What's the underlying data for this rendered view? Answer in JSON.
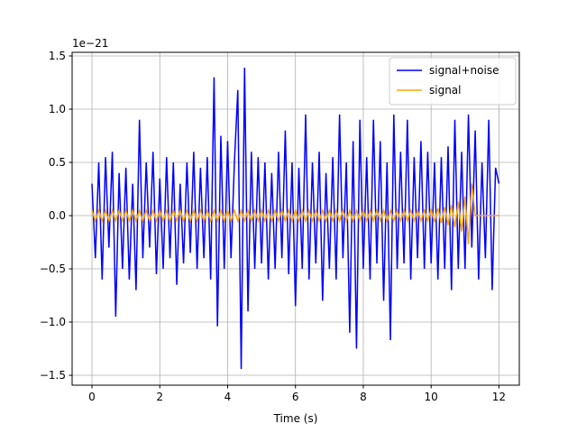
{
  "chart_data": {
    "type": "line",
    "xlabel": "Time (s)",
    "offset_text": "1e−21",
    "xlim": [
      -0.585,
      12.6
    ],
    "ylim": [
      -1.593,
      1.534
    ],
    "xticks": [
      0,
      2,
      4,
      6,
      8,
      10,
      12
    ],
    "yticks": [
      {
        "value": -1.5,
        "label": "−1.5"
      },
      {
        "value": -1.0,
        "label": "−1.0"
      },
      {
        "value": -0.5,
        "label": "−0.5"
      },
      {
        "value": 0,
        "label": "0.0"
      },
      {
        "value": 0.5,
        "label": "0.5"
      },
      {
        "value": 1.0,
        "label": "1.0"
      },
      {
        "value": 1.5,
        "label": "1.5"
      }
    ],
    "grid": true,
    "legend_loc": "upper right",
    "x": [
      0.0,
      0.1,
      0.2,
      0.3,
      0.4,
      0.5,
      0.6,
      0.7,
      0.8,
      0.9,
      1.0,
      1.1,
      1.2,
      1.3,
      1.4,
      1.5,
      1.6,
      1.7,
      1.8,
      1.9,
      2.0,
      2.1,
      2.2,
      2.3,
      2.4,
      2.5,
      2.6,
      2.7,
      2.8,
      2.9,
      3.0,
      3.1,
      3.2,
      3.3,
      3.4,
      3.5,
      3.6,
      3.7,
      3.8,
      3.9,
      4.0,
      4.1,
      4.2,
      4.3,
      4.4,
      4.5,
      4.6,
      4.7,
      4.8,
      4.9,
      5.0,
      5.1,
      5.2,
      5.3,
      5.4,
      5.5,
      5.6,
      5.7,
      5.8,
      5.9,
      6.0,
      6.1,
      6.2,
      6.3,
      6.4,
      6.5,
      6.6,
      6.7,
      6.8,
      6.9,
      7.0,
      7.1,
      7.2,
      7.3,
      7.4,
      7.5,
      7.6,
      7.7,
      7.8,
      7.9,
      8.0,
      8.1,
      8.2,
      8.3,
      8.4,
      8.5,
      8.6,
      8.7,
      8.8,
      8.9,
      9.0,
      9.1,
      9.2,
      9.3,
      9.4,
      9.5,
      9.6,
      9.7,
      9.8,
      9.9,
      10.0,
      10.1,
      10.2,
      10.3,
      10.4,
      10.5,
      10.6,
      10.7,
      10.8,
      10.9,
      11.0,
      11.1,
      11.2,
      11.3,
      11.4,
      11.5,
      11.6,
      11.7,
      11.8,
      11.9,
      12.0
    ],
    "series": [
      {
        "name": "signal+noise",
        "color": "#0000ff",
        "values": [
          0.3,
          -0.4,
          0.5,
          -0.6,
          0.55,
          -0.3,
          0.6,
          -0.95,
          0.4,
          -0.5,
          0.45,
          -0.6,
          0.3,
          -0.7,
          0.9,
          -0.4,
          0.5,
          -0.3,
          0.6,
          -0.55,
          0.35,
          -0.5,
          0.55,
          -0.4,
          0.5,
          -0.65,
          0.3,
          -0.45,
          0.5,
          -0.35,
          0.6,
          -0.5,
          0.45,
          -0.4,
          0.55,
          -0.6,
          1.3,
          -1.04,
          0.75,
          -0.5,
          0.7,
          -0.4,
          0.5,
          1.18,
          -1.44,
          1.39,
          -0.9,
          0.6,
          -0.5,
          0.55,
          -0.45,
          0.5,
          -0.6,
          0.4,
          -0.5,
          0.6,
          -0.4,
          0.8,
          -0.55,
          0.5,
          -0.85,
          0.45,
          -0.5,
          0.95,
          -0.6,
          0.5,
          -0.45,
          0.6,
          -0.8,
          0.4,
          -0.5,
          0.55,
          -0.6,
          0.95,
          -0.4,
          0.5,
          -1.1,
          0.7,
          -1.25,
          0.9,
          -0.5,
          0.55,
          -0.6,
          0.9,
          -0.45,
          0.7,
          -0.8,
          0.5,
          -1.17,
          0.95,
          -0.5,
          0.6,
          -0.45,
          0.9,
          -0.6,
          0.55,
          -0.4,
          0.7,
          -0.5,
          0.6,
          -0.45,
          0.5,
          -0.6,
          0.55,
          -0.5,
          0.65,
          -0.7,
          0.9,
          -0.5,
          0.6,
          -0.5,
          0.95,
          -0.3,
          0.8,
          -0.6,
          0.5,
          -0.4,
          0.9,
          -0.7,
          0.45,
          0.3
        ]
      },
      {
        "name": "signal",
        "color": "#ffa500",
        "values": [
          0.05,
          -0.05,
          0.05,
          -0.05,
          0.05,
          -0.05,
          0.05,
          -0.05,
          0.05,
          -0.05,
          0.05,
          -0.05,
          0.05,
          -0.05,
          0.05,
          -0.05,
          0.05,
          -0.05,
          0.05,
          -0.05,
          0.05,
          -0.05,
          0.05,
          -0.05,
          0.05,
          -0.05,
          0.05,
          -0.05,
          0.05,
          -0.05,
          0.05,
          -0.05,
          0.05,
          -0.05,
          0.05,
          -0.05,
          0.05,
          -0.05,
          0.05,
          -0.05,
          0.05,
          -0.05,
          0.05,
          -0.05,
          0.05,
          -0.05,
          0.05,
          -0.05,
          0.05,
          -0.05,
          0.05,
          -0.05,
          0.05,
          -0.05,
          0.05,
          -0.05,
          0.05,
          -0.05,
          0.05,
          -0.05,
          0.05,
          -0.05,
          0.05,
          -0.05,
          0.05,
          -0.05,
          0.05,
          -0.05,
          0.05,
          -0.05,
          0.05,
          -0.05,
          0.05,
          -0.05,
          0.05,
          -0.05,
          0.05,
          -0.05,
          0.05,
          -0.05,
          0.05,
          -0.05,
          0.05,
          -0.05,
          0.05,
          -0.05,
          0.05,
          -0.05,
          0.05,
          -0.05,
          0.05,
          -0.05,
          0.05,
          -0.05,
          0.05,
          -0.05,
          0.05,
          -0.05,
          0.05,
          -0.05,
          0.06,
          -0.06,
          0.07,
          -0.07,
          0.08,
          -0.09,
          0.1,
          -0.11,
          0.13,
          -0.15,
          0.18,
          -0.27,
          0.3,
          0,
          0,
          0,
          0,
          0,
          0,
          0,
          0
        ]
      }
    ]
  }
}
